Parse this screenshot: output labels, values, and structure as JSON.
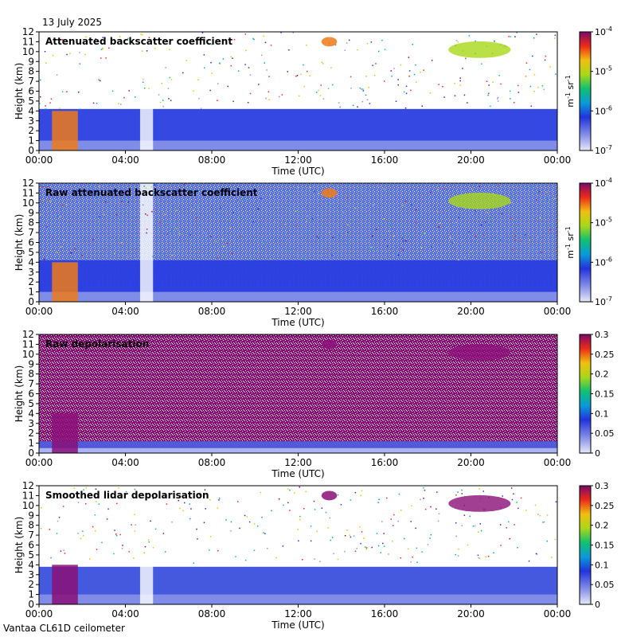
{
  "date_label": "13 July 2025",
  "footer_label": "Vantaa CL61D ceilometer",
  "chart_data": [
    {
      "type": "heatmap",
      "title": "Attenuated backscatter coefficient",
      "xlabel": "Time (UTC)",
      "ylabel": "Height (km)",
      "x_ticks": [
        "00:00",
        "04:00",
        "08:00",
        "12:00",
        "16:00",
        "20:00",
        "00:00"
      ],
      "y_ticks": [
        0,
        1,
        2,
        3,
        4,
        5,
        6,
        7,
        8,
        9,
        10,
        11,
        12
      ],
      "ylim": [
        0,
        12
      ],
      "colorbar": {
        "scale": "log",
        "ticks": [
          "10",
          "10",
          "10",
          "10"
        ],
        "tick_exponents": [
          "-4",
          "-5",
          "-6",
          "-7"
        ],
        "range": [
          1e-07,
          0.0001
        ],
        "unit": "m",
        "unit_exp1": "-1",
        "unit_mid": " sr",
        "unit_exp2": "-1"
      },
      "style": "smoothed"
    },
    {
      "type": "heatmap",
      "title": "Raw attenuated backscatter coefficient",
      "xlabel": "Time (UTC)",
      "ylabel": "Height (km)",
      "x_ticks": [
        "00:00",
        "04:00",
        "08:00",
        "12:00",
        "16:00",
        "20:00",
        "00:00"
      ],
      "y_ticks": [
        0,
        1,
        2,
        3,
        4,
        5,
        6,
        7,
        8,
        9,
        10,
        11,
        12
      ],
      "ylim": [
        0,
        12
      ],
      "colorbar": {
        "scale": "log",
        "ticks": [
          "10",
          "10",
          "10",
          "10"
        ],
        "tick_exponents": [
          "-4",
          "-5",
          "-6",
          "-7"
        ],
        "range": [
          1e-07,
          0.0001
        ],
        "unit": "m",
        "unit_exp1": "-1",
        "unit_mid": " sr",
        "unit_exp2": "-1"
      },
      "style": "raw"
    },
    {
      "type": "heatmap",
      "title": "Raw depolarisation",
      "xlabel": "Time (UTC)",
      "ylabel": "Height (km)",
      "x_ticks": [
        "00:00",
        "04:00",
        "08:00",
        "12:00",
        "16:00",
        "20:00",
        "00:00"
      ],
      "y_ticks": [
        0,
        1,
        2,
        3,
        4,
        5,
        6,
        7,
        8,
        9,
        10,
        11,
        12
      ],
      "ylim": [
        0,
        12
      ],
      "colorbar": {
        "scale": "linear",
        "ticks": [
          "0.3",
          "0.25",
          "0.2",
          "0.15",
          "0.1",
          "0.05",
          "0"
        ],
        "range": [
          0,
          0.3
        ]
      },
      "style": "depol_raw"
    },
    {
      "type": "heatmap",
      "title": "Smoothed lidar depolarisation",
      "xlabel": "Time (UTC)",
      "ylabel": "Height (km)",
      "x_ticks": [
        "00:00",
        "04:00",
        "08:00",
        "12:00",
        "16:00",
        "20:00",
        "00:00"
      ],
      "y_ticks": [
        0,
        1,
        2,
        3,
        4,
        5,
        6,
        7,
        8,
        9,
        10,
        11,
        12
      ],
      "ylim": [
        0,
        12
      ],
      "colorbar": {
        "scale": "linear",
        "ticks": [
          "0.3",
          "0.25",
          "0.2",
          "0.15",
          "0.1",
          "0.05",
          "0"
        ],
        "range": [
          0,
          0.3
        ]
      },
      "style": "depol_smooth"
    }
  ]
}
